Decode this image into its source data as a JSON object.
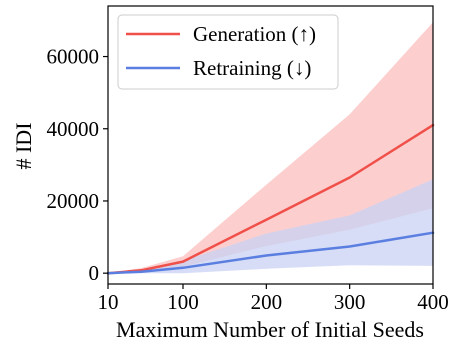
{
  "chart_data": {
    "type": "line",
    "xlabel": "Maximum Number of Initial Seeds",
    "ylabel": "# IDI",
    "xlim": [
      10,
      400
    ],
    "ylim": [
      -3000,
      74000
    ],
    "x_ticks": [
      10,
      100,
      200,
      300,
      400
    ],
    "y_ticks": [
      0,
      20000,
      40000,
      60000
    ],
    "grid": false,
    "legend_position": "top-left",
    "series": [
      {
        "name": "Generation (↑)",
        "color": "#f0504a",
        "band_color": "#fbc7c6",
        "x": [
          10,
          50,
          100,
          200,
          300,
          400
        ],
        "values": [
          0,
          800,
          3200,
          14800,
          26500,
          41000
        ],
        "lower": [
          0,
          300,
          1800,
          7500,
          12000,
          18000
        ],
        "upper": [
          0,
          1400,
          4700,
          24500,
          44000,
          69500
        ]
      },
      {
        "name": "Retraining (↓)",
        "color": "#5b7fe0",
        "band_color": "#c9d1f4",
        "x": [
          10,
          50,
          100,
          200,
          300,
          400
        ],
        "values": [
          0,
          400,
          1500,
          4900,
          7400,
          11200
        ],
        "lower": [
          0,
          0,
          0,
          1200,
          2200,
          2000
        ],
        "upper": [
          0,
          900,
          3400,
          11000,
          16000,
          26000
        ]
      }
    ]
  }
}
